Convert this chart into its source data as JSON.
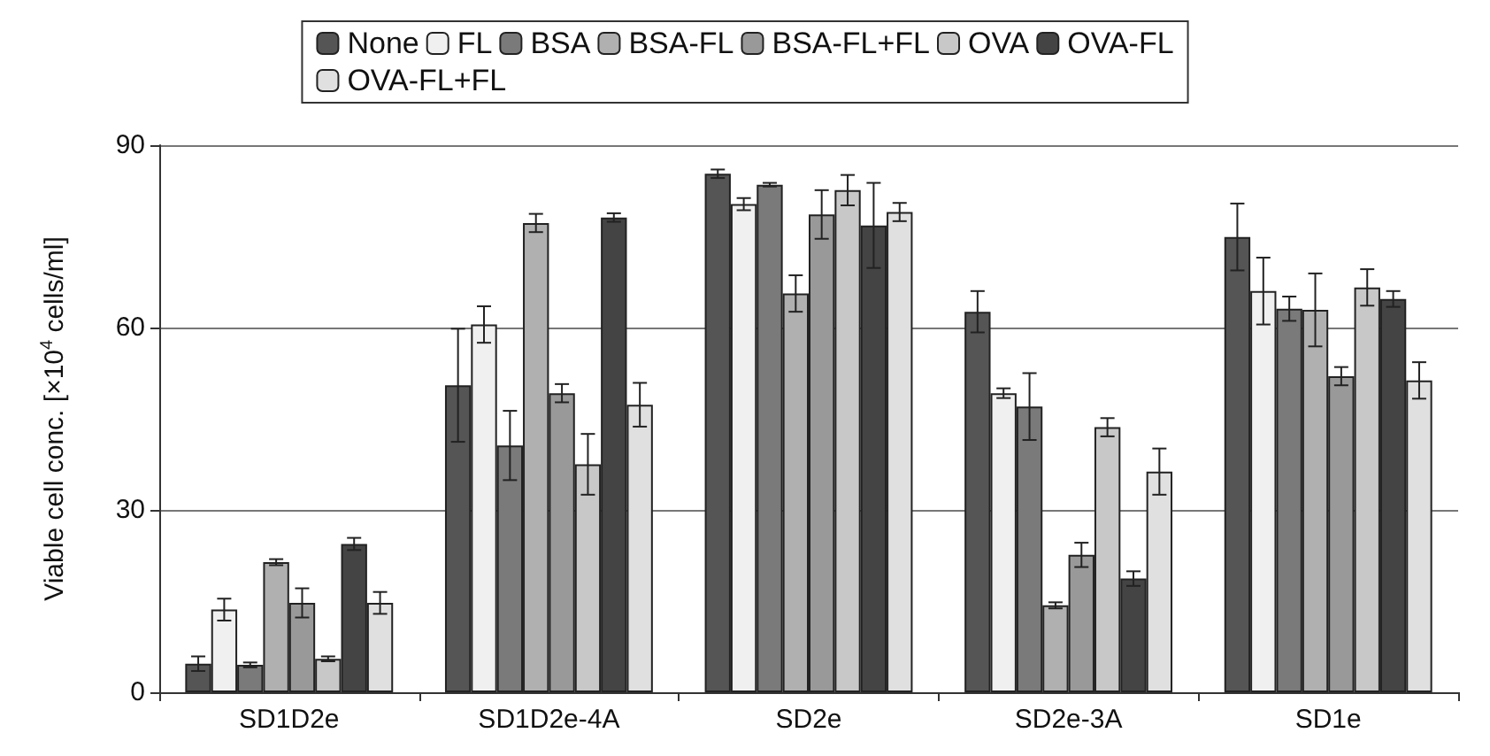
{
  "chart_data": {
    "type": "bar",
    "ylabel": "Viable cell conc. [×10$^{4}$ cells/ml]",
    "categories": [
      "SD1D2e",
      "SD1D2e-4A",
      "SD2e",
      "SD2e-3A",
      "SD1e"
    ],
    "series": [
      {
        "name": "None",
        "color": "#555555",
        "values": [
          4.7,
          50.5,
          85.3,
          62.6,
          74.9
        ],
        "errors": [
          1.2,
          9.3,
          0.7,
          3.4,
          5.5
        ]
      },
      {
        "name": "FL",
        "color": "#f0f0f0",
        "values": [
          13.6,
          60.5,
          80.3,
          49.2,
          66
        ],
        "errors": [
          1.8,
          3,
          1,
          0.8,
          5.5
        ]
      },
      {
        "name": "BSA",
        "color": "#7a7a7a",
        "values": [
          4.5,
          40.6,
          83.5,
          47,
          63.1
        ],
        "errors": [
          0.4,
          5.7,
          0.3,
          5.5,
          2
        ]
      },
      {
        "name": "BSA-FL",
        "color": "#b0b0b0",
        "values": [
          21.4,
          77.2,
          65.6,
          14.3,
          62.9
        ],
        "errors": [
          0.5,
          1.5,
          3,
          0.5,
          6
        ]
      },
      {
        "name": "BSA-FL+FL",
        "color": "#999999",
        "values": [
          14.7,
          49.2,
          78.6,
          22.6,
          52
        ],
        "errors": [
          2.4,
          1.5,
          4,
          2,
          1.5
        ]
      },
      {
        "name": "OVA",
        "color": "#c8c8c8",
        "values": [
          5.5,
          37.5,
          82.6,
          43.6,
          66.6
        ],
        "errors": [
          0.4,
          5,
          2.5,
          1.5,
          3
        ]
      },
      {
        "name": "OVA-FL",
        "color": "#444444",
        "values": [
          24.4,
          78.1,
          76.8,
          18.7,
          64.7
        ],
        "errors": [
          1,
          0.7,
          7,
          1.2,
          1.3
        ]
      },
      {
        "name": "OVA-FL+FL",
        "color": "#e0e0e0",
        "values": [
          14.7,
          47.3,
          79,
          36.3,
          51.3
        ],
        "errors": [
          1.8,
          3.6,
          1.5,
          3.8,
          3
        ]
      }
    ],
    "ylim": [
      0,
      90
    ],
    "yticks": [
      0,
      30,
      60,
      90
    ],
    "grid": "y",
    "legend": "top"
  }
}
